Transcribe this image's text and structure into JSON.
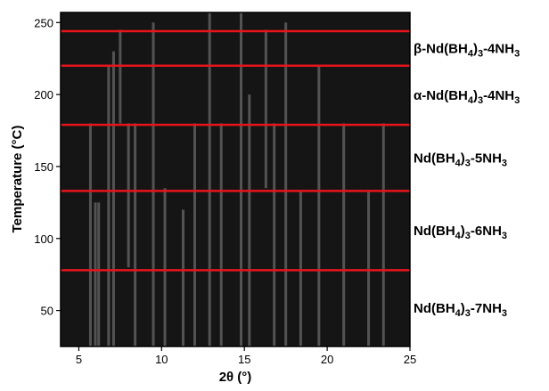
{
  "chart_data": {
    "type": "heatmap",
    "x_label": "2θ (°)",
    "y_label": "Temperature (°C)",
    "xlim": [
      3.9,
      25
    ],
    "ylim": [
      25,
      257
    ],
    "xticks": [
      5,
      10,
      15,
      20,
      25
    ],
    "yticks": [
      50,
      100,
      150,
      200,
      250
    ],
    "background": "#151515",
    "streak_color": "#c8c8c8",
    "transitions": {
      "color": "#e8141c",
      "values": [
        78,
        133,
        179,
        220,
        244
      ]
    },
    "phases": [
      "Nd(BH4)3-7NH3",
      "Nd(BH4)3-6NH3",
      "Nd(BH4)3-5NH3",
      "α-Nd(BH4)3-4NH3",
      "β-Nd(BH4)3-4NH3"
    ],
    "streaks": [
      {
        "x": 5.7,
        "t": [
          25,
          180
        ]
      },
      {
        "x": 6.0,
        "t": [
          25,
          125
        ]
      },
      {
        "x": 6.2,
        "t": [
          25,
          125
        ]
      },
      {
        "x": 6.8,
        "t": [
          25,
          220
        ]
      },
      {
        "x": 7.1,
        "t": [
          25,
          230
        ]
      },
      {
        "x": 7.5,
        "t": [
          180,
          245
        ]
      },
      {
        "x": 8.0,
        "t": [
          80,
          180
        ]
      },
      {
        "x": 8.4,
        "t": [
          25,
          180
        ]
      },
      {
        "x": 9.5,
        "t": [
          25,
          250
        ]
      },
      {
        "x": 10.2,
        "t": [
          25,
          135
        ]
      },
      {
        "x": 11.3,
        "t": [
          25,
          120
        ]
      },
      {
        "x": 12.0,
        "t": [
          25,
          180
        ]
      },
      {
        "x": 12.9,
        "t": [
          25,
          257
        ]
      },
      {
        "x": 13.6,
        "t": [
          25,
          180
        ]
      },
      {
        "x": 14.8,
        "t": [
          25,
          257
        ]
      },
      {
        "x": 15.3,
        "t": [
          25,
          200
        ]
      },
      {
        "x": 16.3,
        "t": [
          135,
          245
        ]
      },
      {
        "x": 16.8,
        "t": [
          25,
          180
        ]
      },
      {
        "x": 17.5,
        "t": [
          25,
          250
        ]
      },
      {
        "x": 18.4,
        "t": [
          25,
          133
        ]
      },
      {
        "x": 19.5,
        "t": [
          25,
          220
        ]
      },
      {
        "x": 21.0,
        "t": [
          25,
          180
        ]
      },
      {
        "x": 22.5,
        "t": [
          25,
          133
        ]
      },
      {
        "x": 23.4,
        "t": [
          25,
          180
        ]
      }
    ]
  }
}
